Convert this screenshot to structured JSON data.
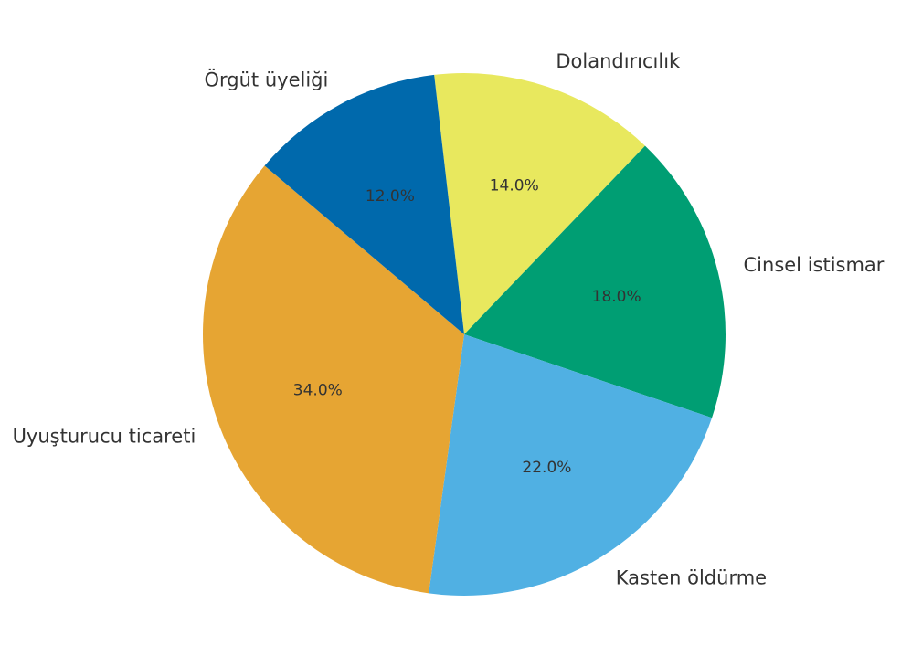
{
  "chart_data": {
    "type": "pie",
    "slices": [
      {
        "label": "Dolandırıcılık",
        "value": 14.0,
        "pct_label": "14.0%",
        "color": "#E8E85E"
      },
      {
        "label": "Cinsel istismar",
        "value": 18.0,
        "pct_label": "18.0%",
        "color": "#009E73"
      },
      {
        "label": "Kasten öldürme",
        "value": 22.0,
        "pct_label": "22.0%",
        "color": "#50B0E3"
      },
      {
        "label": "Uyuşturucu ticareti",
        "value": 34.0,
        "pct_label": "34.0%",
        "color": "#E6A533"
      },
      {
        "label": "Örgüt üyeliği",
        "value": 12.0,
        "pct_label": "12.0%",
        "color": "#0069AC"
      }
    ],
    "direction": "clockwise",
    "legend": "none"
  }
}
